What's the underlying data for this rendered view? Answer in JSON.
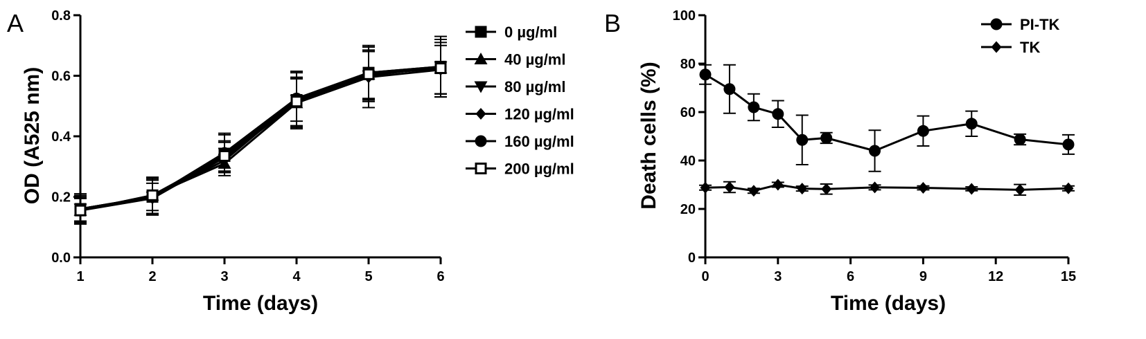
{
  "chart_data": [
    {
      "panel": "A",
      "type": "line",
      "xlabel": "Time (days)",
      "ylabel": "OD (A525 nm)",
      "xlim": [
        1,
        6
      ],
      "ylim": [
        0.0,
        0.8
      ],
      "xticks": [
        1,
        2,
        3,
        4,
        5,
        6
      ],
      "yticks": [
        0.0,
        0.2,
        0.4,
        0.6,
        0.8
      ],
      "ytick_labels": [
        "0.0",
        "0.2",
        "0.4",
        "0.6",
        "0.8"
      ],
      "legend_position": "right",
      "x": [
        1,
        2,
        3,
        4,
        5,
        6
      ],
      "series": [
        {
          "name": "0 µg/ml",
          "marker": "square-filled",
          "values": [
            0.16,
            0.2,
            0.34,
            0.52,
            0.61,
            0.63
          ],
          "errors": [
            0.05,
            0.06,
            0.07,
            0.09,
            0.085,
            0.1
          ]
        },
        {
          "name": "40 µg/ml",
          "marker": "triangle-up",
          "values": [
            0.155,
            0.205,
            0.31,
            0.51,
            0.605,
            0.625
          ],
          "errors": [
            0.04,
            0.05,
            0.03,
            0.08,
            0.09,
            0.095
          ]
        },
        {
          "name": "80 µg/ml",
          "marker": "triangle-down",
          "values": [
            0.16,
            0.2,
            0.32,
            0.52,
            0.6,
            0.63
          ],
          "errors": [
            0.04,
            0.06,
            0.04,
            0.07,
            0.08,
            0.09
          ]
        },
        {
          "name": "120 µg/ml",
          "marker": "diamond",
          "values": [
            0.155,
            0.195,
            0.33,
            0.51,
            0.595,
            0.62
          ],
          "errors": [
            0.04,
            0.05,
            0.05,
            0.085,
            0.1,
            0.08
          ]
        },
        {
          "name": "160 µg/ml",
          "marker": "circle",
          "values": [
            0.16,
            0.2,
            0.345,
            0.525,
            0.61,
            0.63
          ],
          "errors": [
            0.045,
            0.055,
            0.06,
            0.09,
            0.09,
            0.09
          ]
        },
        {
          "name": "200 µg/ml",
          "marker": "square-open",
          "values": [
            0.155,
            0.205,
            0.335,
            0.515,
            0.605,
            0.625
          ],
          "errors": [
            0.04,
            0.06,
            0.05,
            0.08,
            0.08,
            0.085
          ]
        }
      ]
    },
    {
      "panel": "B",
      "type": "line",
      "xlabel": "Time (days)",
      "ylabel": "Death cells (%)",
      "xlim": [
        0,
        15
      ],
      "ylim": [
        0,
        100
      ],
      "xticks": [
        0,
        3,
        6,
        9,
        12,
        15
      ],
      "yticks": [
        0,
        20,
        40,
        60,
        80,
        100
      ],
      "legend_position": "top-right",
      "series": [
        {
          "name": "PI-TK",
          "marker": "circle",
          "x": [
            0,
            1,
            2,
            3,
            4,
            5,
            7,
            9,
            11,
            13,
            15
          ],
          "values": [
            75.5,
            69.5,
            62,
            59.2,
            48.5,
            49.3,
            44,
            52.2,
            55.2,
            48.7,
            46.6
          ],
          "errors": [
            4,
            10,
            5.5,
            5.5,
            10.2,
            2.2,
            8.5,
            6.2,
            5.2,
            2.2,
            4
          ]
        },
        {
          "name": "TK",
          "marker": "diamond",
          "x": [
            0,
            1,
            2,
            3,
            4,
            5,
            7,
            9,
            11,
            13,
            15
          ],
          "values": [
            28.8,
            29,
            27.5,
            30,
            28.4,
            28.2,
            28.9,
            28.7,
            28.3,
            27.9,
            28.5
          ],
          "errors": [
            1,
            2.2,
            1,
            1,
            1,
            2.1,
            1,
            0.8,
            0.8,
            2.2,
            1
          ]
        }
      ]
    }
  ]
}
